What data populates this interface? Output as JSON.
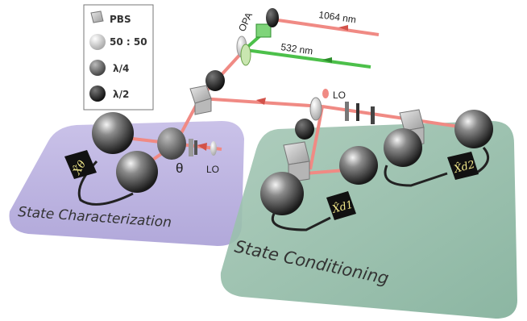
{
  "legend": {
    "items": [
      {
        "symbol": "pbs-cube",
        "label": "PBS"
      },
      {
        "symbol": "beamsplitter-50-50",
        "label": "50 : 50"
      },
      {
        "symbol": "quarter-wave-plate",
        "label": "λ/4"
      },
      {
        "symbol": "half-wave-plate",
        "label": "λ/2"
      }
    ]
  },
  "beams": {
    "ir_label": "1064 nm",
    "green_label": "532 nm",
    "ir_color": "#f08a84",
    "green_color": "#4cc04a"
  },
  "components": {
    "opa_label": "OPA",
    "lo_top_label": "LO",
    "lo_bottom_label": "LO",
    "theta_label": "θ"
  },
  "regions": {
    "characterization": {
      "label": "State Characterization",
      "color": "#b3a8dc"
    },
    "conditioning": {
      "label": "State Conditioning",
      "color": "#8fb8a4"
    }
  },
  "detectors": {
    "x_theta": "X̂θ",
    "x_d1": "X̂d1",
    "x_d2": "X̂d2"
  }
}
